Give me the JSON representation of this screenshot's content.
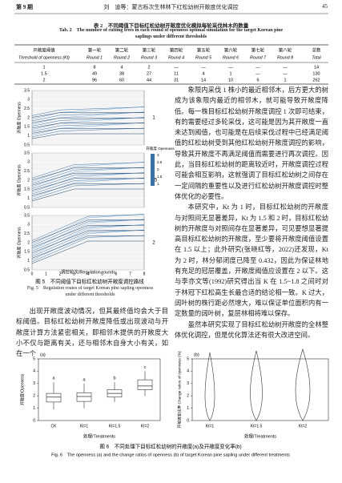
{
  "header": {
    "issue": "第 9 期",
    "running_title": "刘　迪等：蒙古栎次生林林下红松幼树开敞度优化调控",
    "page": "45"
  },
  "table": {
    "title_cn": "表 2　不同阈值下目标红松幼树开敞度优化模拟每轮采伐林木的数量",
    "title_en": "Tab. 2　The number of cutting trees in each round of openness optimal simulation for the target Korean pine saplings under different thresholds",
    "columns": [
      {
        "cn": "开敞度阈值",
        "en": "Threshold of openness (Kt)"
      },
      {
        "cn": "第一轮",
        "en": "Round 1"
      },
      {
        "cn": "第二轮",
        "en": "Round 2"
      },
      {
        "cn": "第三轮",
        "en": "Round 3"
      },
      {
        "cn": "第四轮",
        "en": "Round 4"
      },
      {
        "cn": "第五轮",
        "en": "Round 5"
      },
      {
        "cn": "第六轮",
        "en": "Round 6"
      },
      {
        "cn": "第七轮",
        "en": "Round 7"
      },
      {
        "cn": "第八轮",
        "en": "Round 8"
      },
      {
        "cn": "总数",
        "en": "Total"
      }
    ],
    "rows": [
      [
        "1",
        "8",
        "4",
        "2",
        "—",
        "—",
        "—",
        "—",
        "—",
        "14"
      ],
      [
        "1.5",
        "49",
        "38",
        "27",
        "11",
        "4",
        "1",
        "—",
        "—",
        "130"
      ],
      [
        "2",
        "96",
        "60",
        "44",
        "31",
        "14",
        "10",
        "6",
        "1",
        "262"
      ]
    ]
  },
  "figure5": {
    "panels": [
      "1",
      "1.5",
      "2"
    ],
    "y_label": "开敞度 Openness",
    "x_label": "调控轮次/Regulation rounds",
    "yticks": [
      0.5,
      1,
      1.5,
      2,
      2.5,
      3,
      3.5
    ],
    "ylim": [
      0.5,
      3.5
    ],
    "xticks": [
      0,
      1,
      2,
      3,
      4,
      5,
      6,
      7,
      8
    ],
    "xlim": [
      0,
      8
    ],
    "legend_title": "开敞度 Openness",
    "legend_ticks": [
      3,
      2.5,
      2,
      1.5,
      1
    ],
    "caption_cn": "图 5　不同阈值下目标红松幼树开敞度调控路线",
    "caption_en": "Fig. 5　Regulation routes of target Korean pine sapling openness under different thresholds"
  },
  "text_left": "出现开敞度波动情况，但其最终值均会大于目标阈值。目标红松幼树开敞度降低或出现波动与开敞度计算方法紧密相关，即相邻木提供的开敞度大小不仅与距离有关，还与相邻木自身大小有关，如在一个",
  "text_right": [
    "象限内采伐 1 株小的最近相邻木，后方更大的树成为该象限内最近的相邻木，就可能导致开敞度降低。每一株目标红松幼树开敞度调控 1 次即可结束，有的需要经过多轮采伐，这可能是因为其开敞度一直未达到阈值，也可能是在后续采伐过程中已经满足阈值的红松幼树受到其他红松幼树开敞度调控的影响，导致其开敞度不再满足阈值而需要进行再次调控。因此，当目标红松幼树的距离较近时，开敞度调控过程可能会相互影响，这就强调了目标红松幼树之间存在一定间隔的重要性以及进行红松幼树开敞度调控时整体优化的必要性。",
    "本研究中，Kt 为 1 时，目标红松幼树的开敞度与对照间无显著差异，Kt 为 1.5 和 2 时，目标红松幼树的开敞度与对照间存在显著差异，可见要想显著提高目标红松幼树的开敞度，至少要将开敞度阈值设置在 1.5 以上；此外研究(张晓红等，2022)还发现，Kt 为 2 时，林分郁闭度已降至 0.432，因此为保证林地有充足的冠层覆盖，开敞度阈值应设置在 2 以下。这与李亦文等(1992)研究得出当 K 在 1.5~1.8 之间时对于林冠下红松高生长最合适的结论相一致。K 过大，阔叶树的株行距必然增大，难以保证单位面积内有一定数量的阔叶树，复层林相将难以保存。",
    "虽然本研究实现了目标红松幼树开敞度的全林整体优化调控，但是优化算法还有很大改进空间。"
  ],
  "figure6": {
    "a": {
      "panel": "(a)",
      "y_label": "开敞度/Openness",
      "x_label": "处理/Treatments",
      "categories": [
        "CK",
        "Kt=1",
        "Kt=1.5",
        "Kt=2"
      ],
      "ylim": [
        0,
        5
      ],
      "yticks": [
        0,
        1,
        2,
        3,
        4,
        5
      ],
      "boxes": [
        {
          "min": 0.9,
          "q1": 1.5,
          "median": 1.9,
          "q3": 2.2,
          "max": 3.1
        },
        {
          "min": 1.0,
          "q1": 1.55,
          "median": 1.95,
          "q3": 2.25,
          "max": 3.0
        },
        {
          "min": 1.5,
          "q1": 1.9,
          "median": 2.2,
          "q3": 2.5,
          "max": 3.1
        },
        {
          "min": 2.0,
          "q1": 2.5,
          "median": 2.8,
          "q3": 3.3,
          "max": 4.0
        }
      ],
      "letters": [
        "a",
        "a",
        "b",
        "c"
      ]
    },
    "b": {
      "panel": "(b)",
      "y_label": "开敞度变化率 Change ratios of openness (%)",
      "x_label": "处理/Treatments",
      "categories": [
        "Kt=1",
        "Kt=1.5",
        "Kt=2"
      ],
      "ylim": [
        0,
        5
      ],
      "yticks": [
        0,
        1,
        2,
        3,
        4,
        5
      ]
    },
    "caption_cn": "图 6　不同处理下目标红松幼树的开敞度(a)及开敞度变化率(b)",
    "caption_en": "Fig. 6　The openness (a) and the change ratios of openness (b) of target Korean pine sapling under different treatments"
  }
}
